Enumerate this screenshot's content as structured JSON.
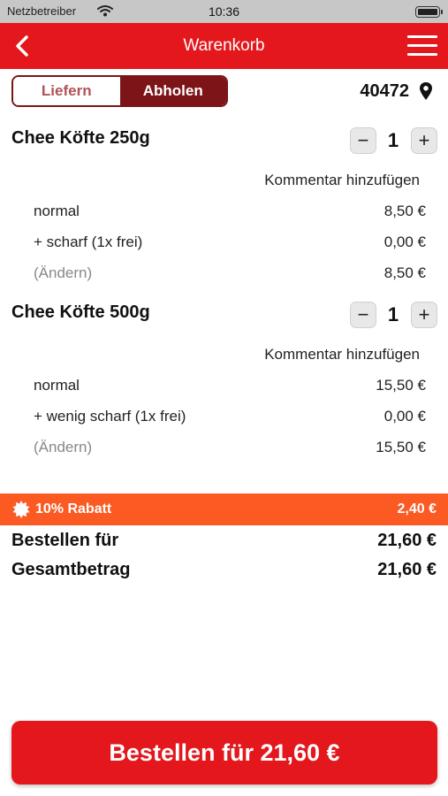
{
  "status_bar": {
    "carrier": "Netzbetreiber",
    "time": "10:36"
  },
  "header": {
    "title": "Warenkorb"
  },
  "delivery_toggle": {
    "options": [
      "Liefern",
      "Abholen"
    ],
    "selected": "Abholen"
  },
  "location": {
    "zip": "40472"
  },
  "cart": {
    "items": [
      {
        "name": "Chee Köfte 250g",
        "quantity": "1",
        "comment_label": "Kommentar hinzufügen",
        "lines": [
          {
            "label": "normal",
            "price": "8,50 €"
          },
          {
            "label": "+ scharf (1x frei)",
            "price": "0,00 €"
          },
          {
            "label": "(Ändern)",
            "price": "8,50 €"
          }
        ]
      },
      {
        "name": "Chee Köfte 500g",
        "quantity": "1",
        "comment_label": "Kommentar hinzufügen",
        "lines": [
          {
            "label": "normal",
            "price": "15,50 €"
          },
          {
            "label": "+ wenig scharf (1x frei)",
            "price": "0,00 €"
          },
          {
            "label": "(Ändern)",
            "price": "15,50 €"
          }
        ]
      }
    ]
  },
  "discount": {
    "label": "10% Rabatt",
    "value": "2,40 €"
  },
  "totals": {
    "order_for_label": "Bestellen für",
    "order_for_value": "21,60 €",
    "total_label": "Gesamtbetrag",
    "total_value": "21,60 €"
  },
  "order_button": {
    "label": "Bestellen für 21,60 €"
  },
  "colors": {
    "header": "#e3171c",
    "segment_active": "#7c1418",
    "discount_bar": "#fb5a23",
    "order_button": "#e3171c"
  },
  "icons": [
    "wifi-icon",
    "battery-icon",
    "back-icon",
    "menu-icon",
    "location-pin-icon",
    "discount-badge-icon",
    "minus-icon",
    "plus-icon"
  ]
}
